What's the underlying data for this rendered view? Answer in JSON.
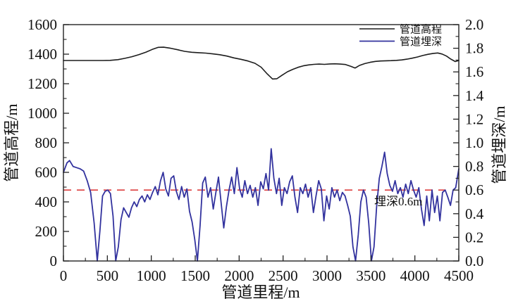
{
  "chart_data": {
    "type": "line",
    "title": "",
    "grid": false,
    "legend_position": "top-right-inside",
    "x_axis": {
      "label": "管道里程/m",
      "min": 0,
      "max": 4500,
      "major_ticks": [
        0,
        500,
        1000,
        1500,
        2000,
        2500,
        3000,
        3500,
        4000,
        4500
      ],
      "minor_ticks": [
        250,
        750,
        1250,
        1750,
        2250,
        2750,
        3250,
        3750,
        4250
      ],
      "decimals": 0
    },
    "y_left": {
      "label": "管道高程/m",
      "min": 0,
      "max": 1600,
      "major_ticks": [
        0,
        200,
        400,
        600,
        800,
        1000,
        1200,
        1400,
        1600
      ],
      "minor_ticks": [
        100,
        300,
        500,
        700,
        900,
        1100,
        1300,
        1500
      ],
      "decimals": 0
    },
    "y_right": {
      "label": "管道埋深/m",
      "min": 0,
      "max": 2,
      "major_ticks": [
        0,
        0.2,
        0.4,
        0.6,
        0.8,
        1,
        1.2,
        1.4,
        1.6,
        1.8,
        2
      ],
      "minor_ticks": [
        0.1,
        0.3,
        0.5,
        0.7,
        0.9,
        1.1,
        1.3,
        1.5,
        1.7,
        1.9
      ],
      "decimals": 1
    },
    "legend": [
      {
        "label": "管道高程",
        "color": "#1c1c1c"
      },
      {
        "label": "管道埋深",
        "color": "#32329e"
      }
    ],
    "reference_line": {
      "axis": "right",
      "value": 0.6,
      "color": "#e05252",
      "style": "dashed",
      "x_start": 0,
      "x_end": 4350,
      "label": "埋深0.6m"
    },
    "series": [
      {
        "name": "管道高程",
        "axis": "left",
        "color": "#1c1c1c",
        "width": 1.6,
        "points": [
          [
            0,
            1357
          ],
          [
            150,
            1357
          ],
          [
            300,
            1357
          ],
          [
            450,
            1357
          ],
          [
            530,
            1358
          ],
          [
            620,
            1363
          ],
          [
            700,
            1372
          ],
          [
            780,
            1383
          ],
          [
            860,
            1397
          ],
          [
            940,
            1414
          ],
          [
            1010,
            1432
          ],
          [
            1080,
            1446
          ],
          [
            1140,
            1447
          ],
          [
            1220,
            1440
          ],
          [
            1300,
            1430
          ],
          [
            1380,
            1419
          ],
          [
            1460,
            1413
          ],
          [
            1540,
            1410
          ],
          [
            1620,
            1407
          ],
          [
            1700,
            1402
          ],
          [
            1780,
            1396
          ],
          [
            1860,
            1387
          ],
          [
            1940,
            1375
          ],
          [
            2020,
            1365
          ],
          [
            2100,
            1354
          ],
          [
            2180,
            1338
          ],
          [
            2250,
            1312
          ],
          [
            2320,
            1266
          ],
          [
            2380,
            1232
          ],
          [
            2430,
            1234
          ],
          [
            2490,
            1258
          ],
          [
            2550,
            1281
          ],
          [
            2610,
            1297
          ],
          [
            2670,
            1311
          ],
          [
            2730,
            1321
          ],
          [
            2790,
            1327
          ],
          [
            2850,
            1331
          ],
          [
            2910,
            1333
          ],
          [
            2970,
            1331
          ],
          [
            3030,
            1334
          ],
          [
            3090,
            1335
          ],
          [
            3150,
            1333
          ],
          [
            3210,
            1330
          ],
          [
            3270,
            1318
          ],
          [
            3320,
            1306
          ],
          [
            3370,
            1324
          ],
          [
            3430,
            1336
          ],
          [
            3490,
            1345
          ],
          [
            3550,
            1351
          ],
          [
            3610,
            1354
          ],
          [
            3670,
            1355
          ],
          [
            3730,
            1356
          ],
          [
            3790,
            1358
          ],
          [
            3850,
            1361
          ],
          [
            3910,
            1366
          ],
          [
            3970,
            1373
          ],
          [
            4030,
            1381
          ],
          [
            4090,
            1391
          ],
          [
            4150,
            1399
          ],
          [
            4210,
            1405
          ],
          [
            4260,
            1408
          ],
          [
            4310,
            1401
          ],
          [
            4360,
            1387
          ],
          [
            4410,
            1366
          ],
          [
            4460,
            1350
          ],
          [
            4500,
            1357
          ]
        ]
      },
      {
        "name": "管道埋深",
        "axis": "right",
        "color": "#32329e",
        "width": 1.8,
        "points": [
          [
            0,
            0.75
          ],
          [
            40,
            0.83
          ],
          [
            70,
            0.85
          ],
          [
            110,
            0.8
          ],
          [
            150,
            0.79
          ],
          [
            190,
            0.78
          ],
          [
            230,
            0.76
          ],
          [
            270,
            0.68
          ],
          [
            310,
            0.58
          ],
          [
            350,
            0.32
          ],
          [
            385,
            0.0
          ],
          [
            415,
            0.25
          ],
          [
            445,
            0.55
          ],
          [
            475,
            0.59
          ],
          [
            505,
            0.6
          ],
          [
            535,
            0.57
          ],
          [
            565,
            0.38
          ],
          [
            595,
            0.0
          ],
          [
            625,
            0.12
          ],
          [
            655,
            0.35
          ],
          [
            685,
            0.45
          ],
          [
            715,
            0.41
          ],
          [
            745,
            0.37
          ],
          [
            775,
            0.45
          ],
          [
            805,
            0.5
          ],
          [
            835,
            0.46
          ],
          [
            865,
            0.52
          ],
          [
            895,
            0.55
          ],
          [
            925,
            0.5
          ],
          [
            955,
            0.56
          ],
          [
            985,
            0.52
          ],
          [
            1015,
            0.58
          ],
          [
            1045,
            0.63
          ],
          [
            1075,
            0.56
          ],
          [
            1105,
            0.68
          ],
          [
            1135,
            0.75
          ],
          [
            1165,
            0.61
          ],
          [
            1195,
            0.55
          ],
          [
            1225,
            0.7
          ],
          [
            1255,
            0.72
          ],
          [
            1285,
            0.59
          ],
          [
            1315,
            0.52
          ],
          [
            1345,
            0.63
          ],
          [
            1375,
            0.54
          ],
          [
            1405,
            0.61
          ],
          [
            1435,
            0.42
          ],
          [
            1465,
            0.33
          ],
          [
            1495,
            0.18
          ],
          [
            1525,
            0.0
          ],
          [
            1555,
            0.3
          ],
          [
            1585,
            0.66
          ],
          [
            1615,
            0.71
          ],
          [
            1645,
            0.54
          ],
          [
            1675,
            0.62
          ],
          [
            1705,
            0.44
          ],
          [
            1735,
            0.58
          ],
          [
            1765,
            0.71
          ],
          [
            1795,
            0.49
          ],
          [
            1825,
            0.28
          ],
          [
            1855,
            0.46
          ],
          [
            1885,
            0.6
          ],
          [
            1915,
            0.71
          ],
          [
            1945,
            0.57
          ],
          [
            1975,
            0.79
          ],
          [
            2005,
            0.61
          ],
          [
            2035,
            0.54
          ],
          [
            2065,
            0.68
          ],
          [
            2095,
            0.57
          ],
          [
            2125,
            0.64
          ],
          [
            2155,
            0.54
          ],
          [
            2185,
            0.62
          ],
          [
            2215,
            0.47
          ],
          [
            2245,
            0.67
          ],
          [
            2275,
            0.61
          ],
          [
            2305,
            0.74
          ],
          [
            2335,
            0.6
          ],
          [
            2365,
            0.95
          ],
          [
            2395,
            0.7
          ],
          [
            2425,
            0.57
          ],
          [
            2455,
            0.7
          ],
          [
            2485,
            0.47
          ],
          [
            2515,
            0.62
          ],
          [
            2545,
            0.57
          ],
          [
            2575,
            0.67
          ],
          [
            2605,
            0.72
          ],
          [
            2635,
            0.54
          ],
          [
            2665,
            0.41
          ],
          [
            2695,
            0.62
          ],
          [
            2725,
            0.57
          ],
          [
            2755,
            0.65
          ],
          [
            2785,
            0.54
          ],
          [
            2815,
            0.62
          ],
          [
            2845,
            0.41
          ],
          [
            2875,
            0.55
          ],
          [
            2905,
            0.68
          ],
          [
            2935,
            0.61
          ],
          [
            2965,
            0.34
          ],
          [
            2995,
            0.55
          ],
          [
            3025,
            0.44
          ],
          [
            3055,
            0.62
          ],
          [
            3085,
            0.54
          ],
          [
            3115,
            0.6
          ],
          [
            3145,
            0.51
          ],
          [
            3175,
            0.58
          ],
          [
            3205,
            0.55
          ],
          [
            3235,
            0.47
          ],
          [
            3265,
            0.38
          ],
          [
            3295,
            0.12
          ],
          [
            3325,
            0.0
          ],
          [
            3355,
            0.22
          ],
          [
            3385,
            0.5
          ],
          [
            3415,
            0.6
          ],
          [
            3445,
            0.54
          ],
          [
            3475,
            0.32
          ],
          [
            3505,
            0.0
          ],
          [
            3535,
            0.12
          ],
          [
            3565,
            0.46
          ],
          [
            3595,
            0.7
          ],
          [
            3625,
            0.8
          ],
          [
            3655,
            0.92
          ],
          [
            3685,
            0.74
          ],
          [
            3715,
            0.64
          ],
          [
            3745,
            0.59
          ],
          [
            3775,
            0.68
          ],
          [
            3805,
            0.57
          ],
          [
            3835,
            0.62
          ],
          [
            3865,
            0.54
          ],
          [
            3895,
            0.65
          ],
          [
            3925,
            0.57
          ],
          [
            3955,
            0.68
          ],
          [
            3985,
            0.6
          ],
          [
            4015,
            0.54
          ],
          [
            4045,
            0.62
          ],
          [
            4075,
            0.44
          ],
          [
            4105,
            0.3
          ],
          [
            4135,
            0.55
          ],
          [
            4165,
            0.34
          ],
          [
            4195,
            0.6
          ],
          [
            4225,
            0.41
          ],
          [
            4255,
            0.55
          ],
          [
            4285,
            0.34
          ],
          [
            4315,
            0.58
          ],
          [
            4345,
            0.6
          ],
          [
            4375,
            0.54
          ],
          [
            4405,
            0.47
          ],
          [
            4435,
            0.6
          ],
          [
            4465,
            0.62
          ],
          [
            4500,
            0.78
          ]
        ]
      }
    ]
  }
}
